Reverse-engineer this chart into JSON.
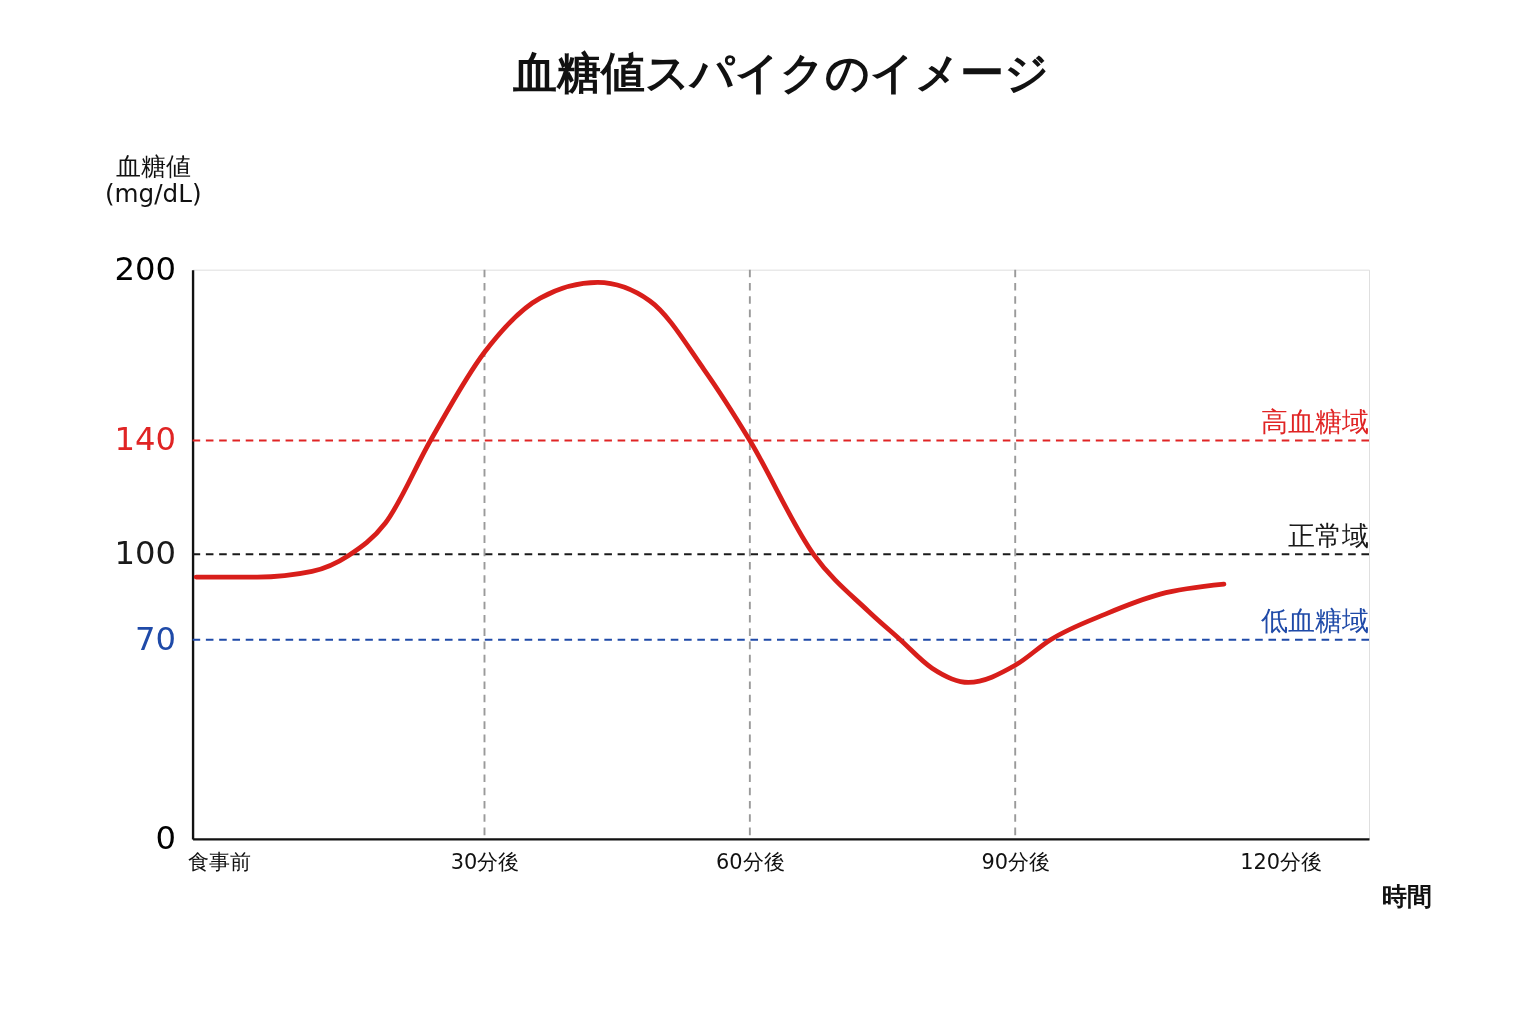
{
  "chart_data": {
    "type": "line",
    "title": "血糖値スパイクのイメージ",
    "xlabel": "時間",
    "ylabel": "血糖値\n(mg/dL)",
    "xlim": [
      -3,
      130
    ],
    "ylim": [
      0,
      200
    ],
    "xticks": [
      {
        "value": 0,
        "label": "食事前"
      },
      {
        "value": 30,
        "label": "30分後"
      },
      {
        "value": 60,
        "label": "60分後"
      },
      {
        "value": 90,
        "label": "90分後"
      },
      {
        "value": 120,
        "label": "120分後"
      }
    ],
    "yticks": [
      0,
      70,
      100,
      140,
      200
    ],
    "grid": false,
    "marker": "none",
    "line_style": "solid",
    "series": [
      {
        "color": "#d81e1a",
        "x": [
          -2.6,
          4.3,
          10.5,
          14.6,
          18.8,
          23.9,
          30,
          36.3,
          42.8,
          48.7,
          54.8,
          60,
          67.2,
          73.4,
          77,
          80.6,
          84.7,
          90,
          94,
          100.2,
          106.4,
          113.6
        ],
        "values": [
          92,
          92,
          94,
          99.5,
          111,
          140,
          171,
          190,
          195.5,
          189,
          165,
          140,
          100,
          80,
          70,
          60,
          55,
          61,
          70,
          79,
          86,
          89.5
        ]
      }
    ],
    "ref_lines": [
      {
        "axis": "y",
        "value": 140,
        "label": "高血糖域",
        "color": "#e02424",
        "line_style": "dashed"
      },
      {
        "axis": "y",
        "value": 100,
        "label": "正常域",
        "color": "#1a1a1a",
        "line_style": "dashed"
      },
      {
        "axis": "y",
        "value": 70,
        "label": "低血糖域",
        "color": "#1f4aa8",
        "line_style": "dashed"
      },
      {
        "axis": "x",
        "value": 30,
        "color": "#9a9a9a",
        "line_style": "dashed"
      },
      {
        "axis": "x",
        "value": 60,
        "color": "#9a9a9a",
        "line_style": "dashed"
      },
      {
        "axis": "x",
        "value": 90,
        "color": "#9a9a9a",
        "line_style": "dashed"
      }
    ]
  }
}
